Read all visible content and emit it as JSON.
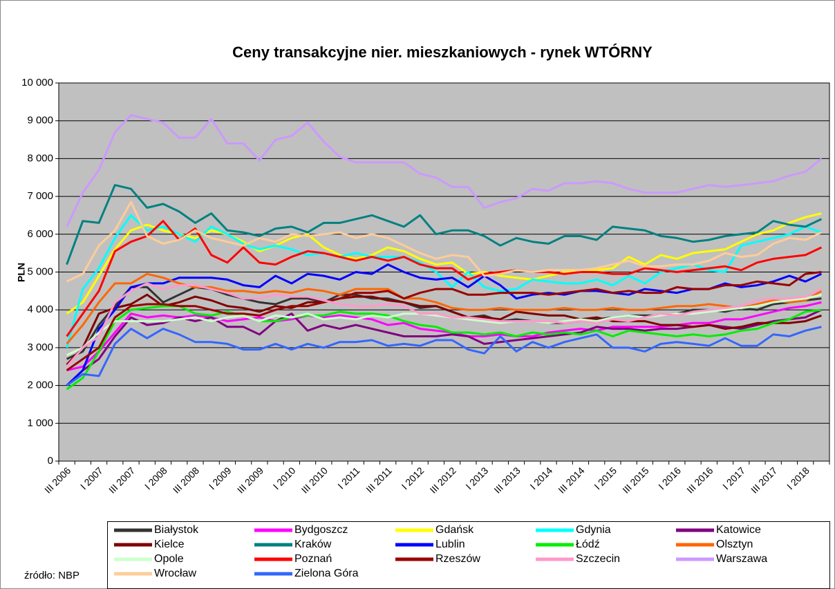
{
  "chart_data": {
    "type": "line",
    "title": "Ceny transakcyjne nier. mieszkaniowych - rynek WTÓRNY",
    "y_label": "PLN",
    "source": "źródło: NBP",
    "categories": [
      "III 2006",
      null,
      "I 2007",
      null,
      "III 2007",
      null,
      "I 2008",
      null,
      "III 2008",
      null,
      "I 2009",
      null,
      "III 2009",
      null,
      "I 2010",
      null,
      "III 2010",
      null,
      "I 2011",
      null,
      "III 2011",
      null,
      "I 2012",
      null,
      "III 2012",
      null,
      "I 2013",
      null,
      "III 2013",
      null,
      "I 2014",
      null,
      "III 2014",
      null,
      "I 2015",
      null,
      "III 2015",
      null,
      "I 2016",
      null,
      "III 2016",
      null,
      "I 2017",
      null,
      "III 2017",
      null,
      "I 2018",
      null
    ],
    "ylim": [
      0,
      10000
    ],
    "yticks": [
      0,
      {
        "value": 1000,
        "label": "1 000"
      },
      {
        "value": 2000,
        "label": "2 000"
      },
      {
        "value": 3000,
        "label": "3 000"
      },
      {
        "value": 4000,
        "label": "4 000"
      },
      {
        "value": 5000,
        "label": "5 000"
      },
      {
        "value": 6000,
        "label": "6 000"
      },
      {
        "value": 7000,
        "label": "7 000"
      },
      {
        "value": 8000,
        "label": "8 000"
      },
      {
        "value": 9000,
        "label": "9 000"
      },
      {
        "value": 10000,
        "label": "10 000"
      }
    ],
    "grid": true,
    "legend": "bottom",
    "series": [
      {
        "name": "Białystok",
        "color": "#333333",
        "values": [
          2700,
          2900,
          3600,
          4100,
          4600,
          4600,
          4200,
          4400,
          4600,
          4550,
          4400,
          4300,
          4200,
          4150,
          4300,
          4300,
          4200,
          4400,
          4400,
          4300,
          4300,
          4200,
          4050,
          4100,
          3950,
          3800,
          3850,
          3700,
          3750,
          3700,
          3650,
          3650,
          3700,
          3750,
          3800,
          3850,
          3850,
          3850,
          3900,
          4000,
          4000,
          3950,
          4050,
          4000,
          4150,
          4200,
          4250,
          4300
        ]
      },
      {
        "name": "Bydgoszcz",
        "color": "#ff00ff",
        "values": [
          2400,
          2500,
          2900,
          3400,
          3900,
          3800,
          3850,
          3800,
          3850,
          3800,
          3700,
          3750,
          3800,
          3700,
          3750,
          3850,
          3800,
          3850,
          3800,
          3750,
          3600,
          3650,
          3500,
          3450,
          3400,
          3300,
          3300,
          3350,
          3300,
          3300,
          3400,
          3450,
          3500,
          3450,
          3550,
          3550,
          3550,
          3550,
          3600,
          3650,
          3650,
          3750,
          3750,
          3850,
          3950,
          4050,
          4100,
          4200
        ]
      },
      {
        "name": "Gdańsk",
        "color": "#ffff00",
        "values": [
          3900,
          4200,
          4900,
          5600,
          6100,
          6250,
          6100,
          6000,
          5900,
          6100,
          6000,
          5800,
          5550,
          5700,
          5900,
          6000,
          5650,
          5450,
          5350,
          5450,
          5650,
          5550,
          5350,
          5200,
          5250,
          4950,
          5000,
          4900,
          4850,
          4800,
          4900,
          5000,
          5000,
          5050,
          5100,
          5400,
          5200,
          5450,
          5350,
          5500,
          5550,
          5600,
          5800,
          6000,
          6100,
          6300,
          6450,
          6550
        ]
      },
      {
        "name": "Gdynia",
        "color": "#00ffff",
        "values": [
          3000,
          4550,
          5100,
          5900,
          6500,
          6100,
          6200,
          6000,
          5800,
          6200,
          6000,
          5750,
          5600,
          5700,
          5600,
          5450,
          5500,
          5400,
          5500,
          5400,
          5400,
          5400,
          5250,
          5000,
          4600,
          5000,
          4600,
          4500,
          4550,
          4800,
          4750,
          4700,
          4700,
          4800,
          4650,
          4900,
          4700,
          5000,
          5100,
          5200,
          5050,
          5000,
          5700,
          5800,
          5900,
          6000,
          6200,
          6050
        ]
      },
      {
        "name": "Katowice",
        "color": "#800080",
        "values": [
          2000,
          2400,
          2700,
          3300,
          3800,
          3600,
          3650,
          3800,
          3700,
          3800,
          3550,
          3550,
          3350,
          3700,
          3900,
          3450,
          3600,
          3500,
          3600,
          3500,
          3400,
          3300,
          3300,
          3300,
          3350,
          3300,
          3100,
          3150,
          3200,
          3250,
          3300,
          3350,
          3400,
          3550,
          3500,
          3500,
          3450,
          3500,
          3500,
          3550,
          3600,
          3550,
          3500,
          3600,
          3700,
          3750,
          3800,
          4000
        ]
      },
      {
        "name": "Kielce",
        "color": "#800000",
        "values": [
          2550,
          3000,
          3900,
          4050,
          4150,
          4400,
          4100,
          4200,
          4350,
          4250,
          4100,
          4050,
          3950,
          4100,
          4050,
          4200,
          4200,
          4300,
          4350,
          4350,
          4250,
          4200,
          4100,
          4100,
          3950,
          3800,
          3800,
          3750,
          3950,
          3900,
          3850,
          3850,
          3750,
          3800,
          3700,
          3700,
          3700,
          3600,
          3600,
          3550,
          3600,
          3500,
          3550,
          3650,
          3650,
          3650,
          3700,
          3850
        ]
      },
      {
        "name": "Kraków",
        "color": "#008080",
        "values": [
          5200,
          6350,
          6300,
          7300,
          7200,
          6700,
          6800,
          6600,
          6300,
          6550,
          6100,
          6050,
          5950,
          6150,
          6200,
          6050,
          6300,
          6300,
          6400,
          6500,
          6350,
          6200,
          6500,
          6000,
          6100,
          6100,
          5950,
          5700,
          5900,
          5800,
          5750,
          5950,
          5950,
          5850,
          6200,
          6150,
          6100,
          5950,
          5900,
          5800,
          5850,
          5950,
          6000,
          6050,
          6350,
          6250,
          6200,
          6400
        ]
      },
      {
        "name": "Lublin",
        "color": "#0000ff",
        "values": [
          2000,
          2400,
          3500,
          4000,
          4600,
          4700,
          4700,
          4850,
          4850,
          4850,
          4800,
          4650,
          4600,
          4900,
          4700,
          4950,
          4900,
          4800,
          5000,
          4950,
          5200,
          5000,
          4850,
          4800,
          4850,
          4600,
          4900,
          4650,
          4300,
          4400,
          4450,
          4400,
          4500,
          4500,
          4450,
          4400,
          4550,
          4500,
          4450,
          4550,
          4550,
          4700,
          4600,
          4650,
          4750,
          4900,
          4750,
          4950
        ]
      },
      {
        "name": "Łódź",
        "color": "#00ee00",
        "values": [
          1900,
          2200,
          2900,
          3700,
          4000,
          4050,
          4100,
          4100,
          3900,
          3850,
          3950,
          3850,
          3700,
          3700,
          3800,
          3850,
          3850,
          3950,
          3900,
          3900,
          3850,
          3700,
          3600,
          3550,
          3400,
          3400,
          3350,
          3400,
          3300,
          3400,
          3350,
          3400,
          3350,
          3450,
          3300,
          3450,
          3400,
          3350,
          3300,
          3350,
          3300,
          3350,
          3450,
          3500,
          3650,
          3750,
          3950,
          4000
        ]
      },
      {
        "name": "Olsztyn",
        "color": "#ff6600",
        "values": [
          3100,
          3600,
          4200,
          4700,
          4700,
          4950,
          4850,
          4700,
          4600,
          4600,
          4500,
          4500,
          4450,
          4500,
          4450,
          4550,
          4500,
          4400,
          4550,
          4550,
          4550,
          4300,
          4300,
          4200,
          4050,
          4000,
          4000,
          4050,
          4000,
          4000,
          4000,
          4050,
          4000,
          4000,
          4050,
          4000,
          4000,
          4050,
          4100,
          4100,
          4150,
          4100,
          4050,
          4150,
          4250,
          4200,
          4250,
          4500
        ]
      },
      {
        "name": "Opole",
        "color": "#ccffcc",
        "values": [
          2800,
          3000,
          3400,
          3700,
          3700,
          3700,
          3700,
          3750,
          3800,
          3700,
          3800,
          3850,
          3700,
          3850,
          3800,
          3900,
          3750,
          3800,
          3750,
          3850,
          3800,
          3900,
          3900,
          3850,
          3800,
          3750,
          3700,
          3650,
          3700,
          3700,
          3650,
          3700,
          3750,
          3700,
          3800,
          3850,
          3800,
          3850,
          3900,
          3900,
          3950,
          4000,
          4050,
          4100,
          4200,
          4250,
          4300,
          4400
        ]
      },
      {
        "name": "Poznań",
        "color": "#ff0000",
        "values": [
          3300,
          3900,
          4500,
          5550,
          5800,
          5950,
          6350,
          5850,
          6150,
          5450,
          5250,
          5650,
          5250,
          5200,
          5400,
          5550,
          5500,
          5400,
          5300,
          5400,
          5300,
          5400,
          5200,
          5100,
          5100,
          4800,
          4950,
          5000,
          5050,
          5000,
          5000,
          4950,
          5000,
          5000,
          4950,
          4950,
          5100,
          5050,
          5000,
          5050,
          5100,
          5150,
          5050,
          5250,
          5350,
          5400,
          5450,
          5650
        ]
      },
      {
        "name": "Rzeszów",
        "color": "#990000",
        "values": [
          2400,
          2700,
          3000,
          3800,
          4100,
          4150,
          4150,
          4100,
          4100,
          4000,
          3900,
          3900,
          3850,
          4000,
          4100,
          4100,
          4200,
          4300,
          4450,
          4450,
          4500,
          4300,
          4450,
          4550,
          4550,
          4400,
          4400,
          4450,
          4450,
          4450,
          4400,
          4450,
          4500,
          4550,
          4450,
          4500,
          4450,
          4450,
          4600,
          4550,
          4550,
          4650,
          4650,
          4750,
          4700,
          4650,
          4950,
          5000
        ]
      },
      {
        "name": "Szczecin",
        "color": "#ff99cc",
        "values": [
          2500,
          3000,
          3300,
          4200,
          4500,
          4700,
          4550,
          4650,
          4650,
          4550,
          4450,
          4300,
          4300,
          4400,
          4350,
          4350,
          4250,
          4150,
          4100,
          4100,
          4150,
          4100,
          3900,
          3900,
          3800,
          3800,
          3750,
          3700,
          3700,
          3700,
          3700,
          3650,
          3700,
          3650,
          3750,
          3700,
          3800,
          3900,
          3850,
          3950,
          4000,
          4050,
          4100,
          4250,
          4300,
          4300,
          4350,
          4550
        ]
      },
      {
        "name": "Warszawa",
        "color": "#cc99ff",
        "values": [
          6200,
          7100,
          7700,
          8700,
          9150,
          9050,
          8950,
          8550,
          8550,
          9050,
          8400,
          8400,
          7950,
          8500,
          8600,
          8950,
          8450,
          8050,
          7900,
          7900,
          7900,
          7900,
          7600,
          7500,
          7250,
          7250,
          6700,
          6850,
          6950,
          7200,
          7150,
          7350,
          7350,
          7400,
          7350,
          7200,
          7100,
          7100,
          7100,
          7200,
          7300,
          7250,
          7300,
          7350,
          7400,
          7550,
          7650,
          8000
        ]
      },
      {
        "name": "Wrocław",
        "color": "#ffcc99",
        "values": [
          4750,
          4950,
          5700,
          6100,
          6850,
          5950,
          5750,
          5850,
          6100,
          5900,
          5800,
          5700,
          5900,
          5800,
          6000,
          5950,
          6000,
          6050,
          5900,
          6000,
          5900,
          5700,
          5500,
          5350,
          5450,
          5400,
          4900,
          4950,
          5050,
          5000,
          5050,
          5050,
          5050,
          5100,
          5200,
          5300,
          5150,
          5150,
          5200,
          5200,
          5300,
          5500,
          5400,
          5450,
          5750,
          5900,
          5850,
          6050
        ]
      },
      {
        "name": "Zielona Góra",
        "color": "#3366ff",
        "values": [
          2000,
          2300,
          2250,
          3100,
          3500,
          3250,
          3500,
          3350,
          3150,
          3150,
          3100,
          2950,
          2950,
          3100,
          2950,
          3100,
          3000,
          3150,
          3150,
          3200,
          3050,
          3100,
          3050,
          3200,
          3200,
          2950,
          2850,
          3300,
          2900,
          3150,
          3000,
          3150,
          3250,
          3350,
          3000,
          3000,
          2900,
          3100,
          3150,
          3100,
          3050,
          3250,
          3050,
          3050,
          3350,
          3300,
          3450,
          3550
        ]
      }
    ]
  }
}
